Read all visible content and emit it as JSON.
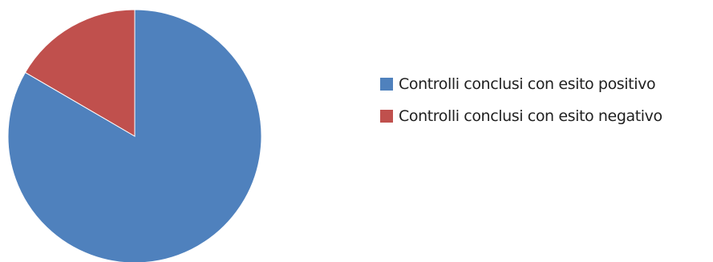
{
  "chart_data": {
    "type": "pie",
    "title": "",
    "categories": [
      "Controlli conclusi con esito positivo",
      "Controlli conclusi con esito negativo"
    ],
    "values": [
      83.4,
      16.6
    ],
    "colors": [
      "#4f81bd",
      "#c0504d"
    ],
    "start_angle": "12 o'clock",
    "direction": "clockwise",
    "legend_position": "right",
    "data_labels": false
  }
}
